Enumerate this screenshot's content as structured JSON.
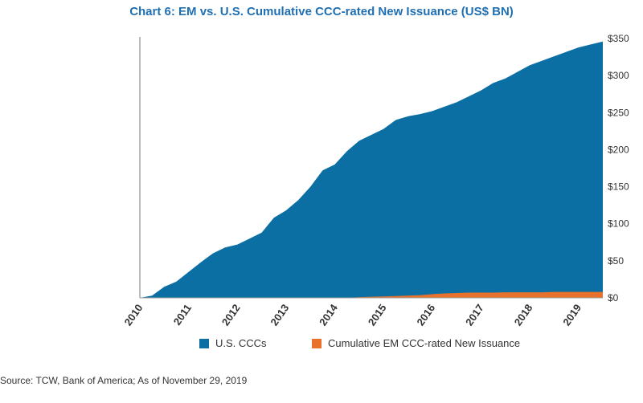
{
  "chart_data": {
    "type": "area",
    "title": "Chart 6: EM vs. U.S. Cumulative CCC-rated New Issuance (US$ BN)",
    "x": [
      2010.0,
      2010.25,
      2010.5,
      2010.75,
      2011.0,
      2011.25,
      2011.5,
      2011.75,
      2012.0,
      2012.25,
      2012.5,
      2012.75,
      2013.0,
      2013.25,
      2013.5,
      2013.75,
      2014.0,
      2014.25,
      2014.5,
      2014.75,
      2015.0,
      2015.25,
      2015.5,
      2015.75,
      2016.0,
      2016.25,
      2016.5,
      2016.75,
      2017.0,
      2017.25,
      2017.5,
      2017.75,
      2018.0,
      2018.25,
      2018.5,
      2018.75,
      2019.0,
      2019.25,
      2019.5
    ],
    "xlim": [
      2010,
      2019.5
    ],
    "xticks": [
      "2010",
      "2011",
      "2012",
      "2013",
      "2014",
      "2015",
      "2016",
      "2017",
      "2018",
      "2019"
    ],
    "ylim": [
      0,
      350
    ],
    "yticks": [
      "$0",
      "$50",
      "$100",
      "$150",
      "$200",
      "$250",
      "$300",
      "$350"
    ],
    "series": [
      {
        "name": "U.S. CCCs",
        "color": "#0b6fa3",
        "values": [
          0,
          3,
          15,
          22,
          35,
          48,
          60,
          68,
          72,
          80,
          88,
          108,
          118,
          132,
          150,
          172,
          180,
          198,
          212,
          220,
          228,
          240,
          245,
          248,
          252,
          258,
          264,
          272,
          280,
          290,
          296,
          305,
          314,
          320,
          326,
          332,
          338,
          342,
          346
        ]
      },
      {
        "name": "Cumulative EM CCC-rated New Issuance",
        "color": "#e8722c",
        "values": [
          0,
          0,
          0,
          0,
          0,
          0,
          0,
          0,
          0,
          0,
          0,
          0,
          0,
          0,
          0,
          0,
          0,
          0,
          1,
          1.5,
          2,
          2.5,
          3,
          3.5,
          5,
          6,
          6.5,
          7,
          7,
          7,
          7.5,
          7.5,
          7.5,
          7.5,
          8,
          8,
          8,
          8,
          8
        ]
      }
    ],
    "legend_position": "bottom",
    "y_axis_position": "right"
  },
  "source_text": "Source: TCW, Bank of America; As of November 29, 2019"
}
